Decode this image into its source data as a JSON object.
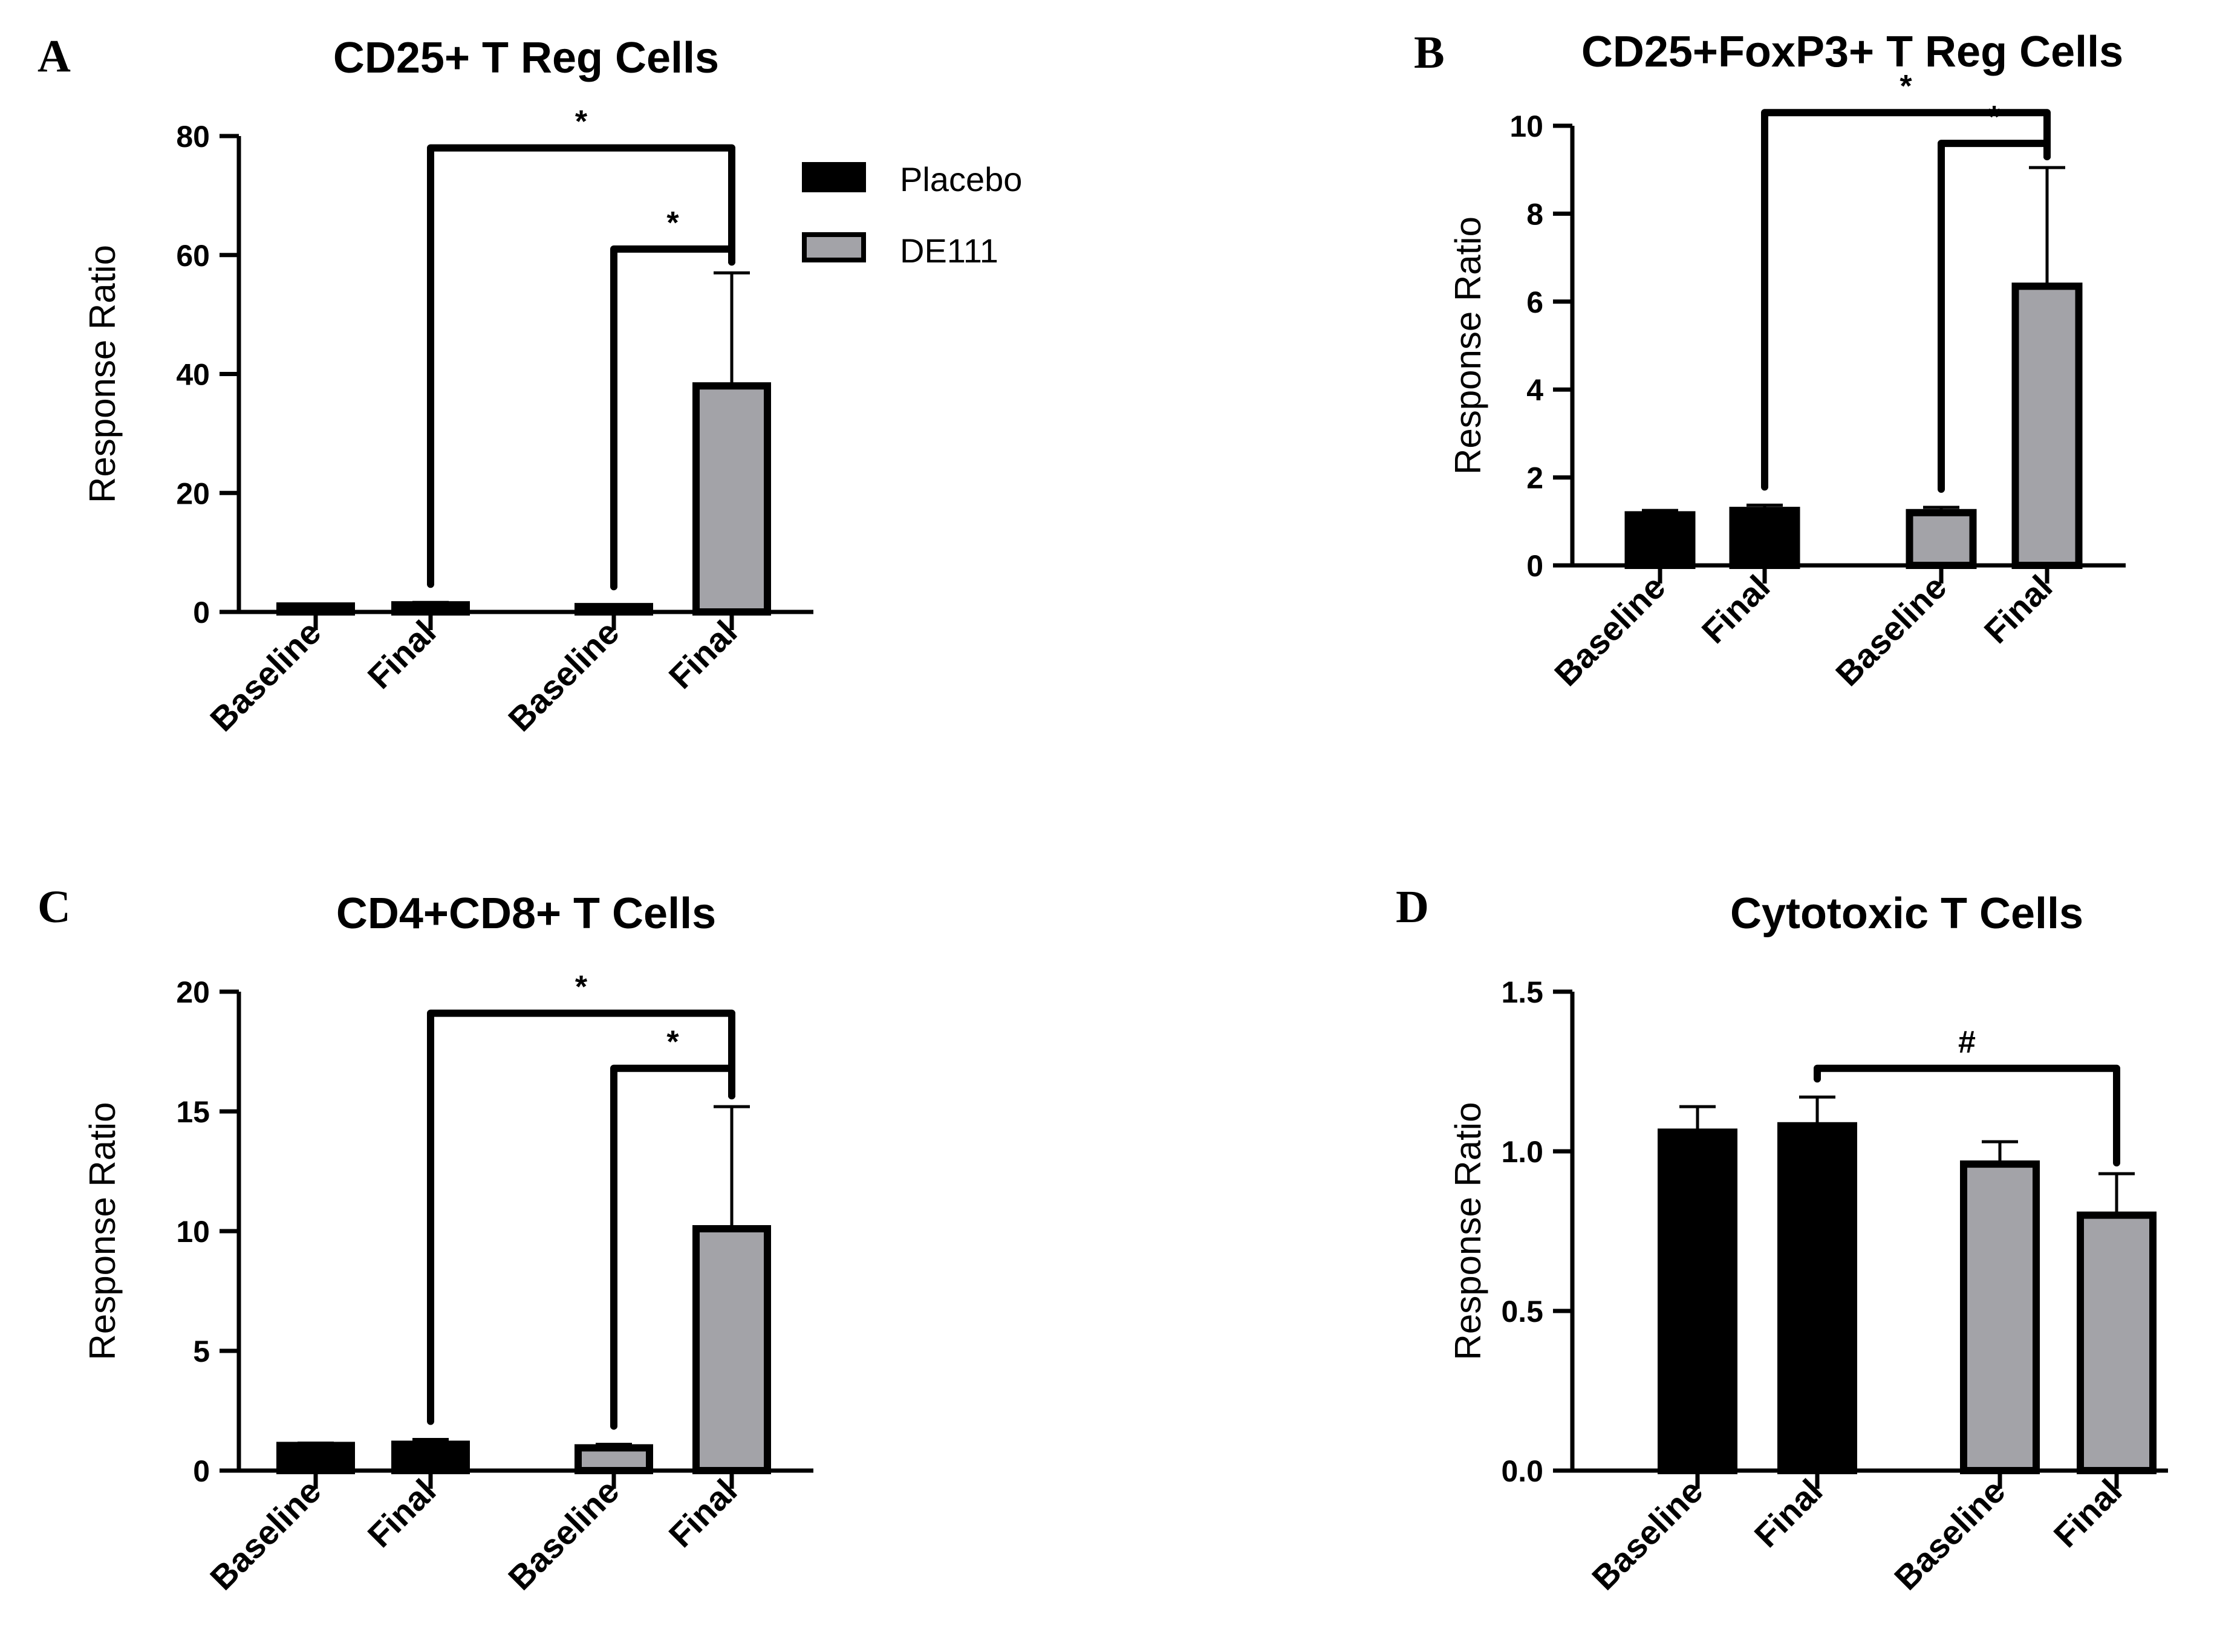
{
  "legend": {
    "entries": [
      {
        "name": "Placebo",
        "color": "#000000"
      },
      {
        "name": "DE111",
        "color": "#a3a3a8"
      }
    ]
  },
  "chart_data": [
    {
      "panel": "A",
      "type": "bar",
      "title": "CD25+ T Reg Cells",
      "ylabel": "Response Ratio",
      "xlabel": "",
      "ylim": [
        0,
        80
      ],
      "yticks": [
        "0",
        "20",
        "40",
        "60",
        "80"
      ],
      "yticks_values": [
        0,
        20,
        40,
        60,
        80
      ],
      "categories": [
        "Baseline",
        "Final",
        "Baseline",
        "Final"
      ],
      "groups": [
        "Placebo",
        "Placebo",
        "DE111",
        "DE111"
      ],
      "values": [
        1,
        1.2,
        0.9,
        38
      ],
      "errors": [
        0.3,
        0.4,
        0.3,
        19
      ],
      "significance": [
        {
          "from": 1,
          "to": 3,
          "label": "*",
          "y": 78
        },
        {
          "from": 2,
          "to": 3,
          "label": "*",
          "y": 61
        }
      ]
    },
    {
      "panel": "B",
      "type": "bar",
      "title": "CD25+FoxP3+ T Reg Cells",
      "ylabel": "Response Ratio",
      "xlabel": "",
      "ylim": [
        0,
        10
      ],
      "yticks": [
        "0",
        "2",
        "4",
        "6",
        "8",
        "10"
      ],
      "yticks_values": [
        0,
        2,
        4,
        6,
        8,
        10
      ],
      "categories": [
        "Baseline",
        "Final",
        "Baseline",
        "Final"
      ],
      "groups": [
        "Placebo",
        "Placebo",
        "DE111",
        "DE111"
      ],
      "values": [
        1.15,
        1.25,
        1.2,
        6.35
      ],
      "errors": [
        0.1,
        0.12,
        0.12,
        2.7
      ],
      "significance": [
        {
          "from": 1,
          "to": 3,
          "label": "*",
          "y": 10.3
        },
        {
          "from": 2,
          "to": 3,
          "label": "*",
          "y": 9.6
        }
      ]
    },
    {
      "panel": "C",
      "type": "bar",
      "title": "CD4+CD8+ T Cells",
      "ylabel": "Response Ratio",
      "xlabel": "",
      "ylim": [
        0,
        20
      ],
      "yticks": [
        "0",
        "5",
        "10",
        "15",
        "20"
      ],
      "yticks_values": [
        0,
        5,
        10,
        15,
        20
      ],
      "categories": [
        "Baseline",
        "Final",
        "Baseline",
        "Final"
      ],
      "groups": [
        "Placebo",
        "Placebo",
        "DE111",
        "DE111"
      ],
      "values": [
        1.05,
        1.1,
        0.95,
        10.1
      ],
      "errors": [
        0.1,
        0.2,
        0.15,
        5.1
      ],
      "significance": [
        {
          "from": 1,
          "to": 3,
          "label": "*",
          "y": 19.1
        },
        {
          "from": 2,
          "to": 3,
          "label": "*",
          "y": 16.8
        }
      ]
    },
    {
      "panel": "D",
      "type": "bar",
      "title": "Cytotoxic T Cells",
      "ylabel": "Response Ratio",
      "xlabel": "",
      "ylim": [
        0,
        1.5
      ],
      "yticks": [
        "0.0",
        "0.5",
        "1.0",
        "1.5"
      ],
      "yticks_values": [
        0,
        0.5,
        1.0,
        1.5
      ],
      "categories": [
        "Baseline",
        "Final",
        "Baseline",
        "Final"
      ],
      "groups": [
        "Placebo",
        "Placebo",
        "DE111",
        "DE111"
      ],
      "values": [
        1.06,
        1.08,
        0.96,
        0.8
      ],
      "errors": [
        0.08,
        0.09,
        0.07,
        0.13
      ],
      "significance": [
        {
          "from": 1,
          "to": 3,
          "label": "#",
          "y": 1.26
        }
      ]
    }
  ]
}
